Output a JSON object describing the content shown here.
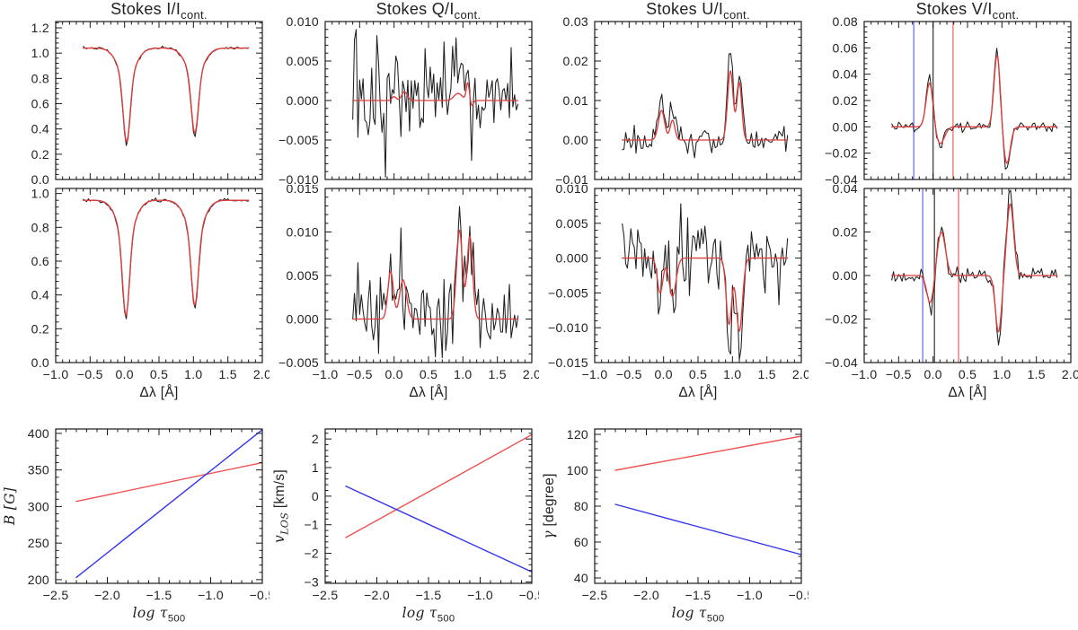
{
  "palette": {
    "axis": "#1a1a1a",
    "black_curve": "#1f1f1f",
    "fit_red": "#dd3c3c",
    "marker_blue": "#7b7bf0",
    "marker_gray": "#4d4d4d",
    "marker_red": "#f07575",
    "line_red": "#f05252",
    "line_blue": "#3535ee"
  },
  "chart_data": [
    {
      "id": "stokes-i-pixel1",
      "type": "line",
      "row": 0,
      "col": 0,
      "title": [
        {
          "t": "Stokes I/I"
        },
        {
          "t": "cont.",
          "sub": true
        }
      ],
      "xlim": [
        -1,
        2
      ],
      "ylim": [
        0,
        1.25
      ],
      "xticks": [
        -1.0,
        -0.5,
        0.0,
        0.5,
        1.0,
        1.5,
        2.0
      ],
      "xtick_labels": null,
      "yticks": [
        0.0,
        0.2,
        0.4,
        0.6,
        0.8,
        1.0,
        1.2
      ],
      "ytick_labels": [
        "0.0",
        "0.2",
        "0.4",
        "0.6",
        "0.8",
        "1.0",
        "1.2"
      ],
      "xlabel": null,
      "ylabel": null,
      "continuum": 1.04,
      "components": [
        {
          "c": 0.03,
          "a": -0.52,
          "s": 0.05
        },
        {
          "c": 0.03,
          "a": -0.22,
          "s": 0.13
        },
        {
          "c": 1.02,
          "a": -0.47,
          "s": 0.05
        },
        {
          "c": 1.02,
          "a": -0.2,
          "s": 0.13
        }
      ],
      "noise": 0.005,
      "obs_gain": 1.04,
      "seed": 7,
      "x_data": {
        "start": -0.6,
        "end": 1.8,
        "n": 97
      },
      "markers": []
    },
    {
      "id": "stokes-q-pixel1",
      "type": "line",
      "row": 0,
      "col": 1,
      "title": [
        {
          "t": "Stokes Q/I"
        },
        {
          "t": "cont.",
          "sub": true
        }
      ],
      "xlim": [
        -1,
        2
      ],
      "ylim": [
        -0.01,
        0.01
      ],
      "xticks": [
        -1.0,
        -0.5,
        0.0,
        0.5,
        1.0,
        1.5,
        2.0
      ],
      "xtick_labels": null,
      "yticks": [
        -0.01,
        -0.005,
        0.0,
        0.005,
        0.01
      ],
      "ytick_labels": [
        "−0.010",
        "−0.005",
        "0.000",
        "0.005",
        "0.010"
      ],
      "xlabel": null,
      "ylabel": null,
      "continuum": 0,
      "components": [
        {
          "c": 0.0,
          "a": 0.0005,
          "s": 0.03
        },
        {
          "c": 0.15,
          "a": 0.0011,
          "s": 0.04
        },
        {
          "c": 0.93,
          "a": 0.0009,
          "s": 0.06
        },
        {
          "c": 1.07,
          "a": 0.0022,
          "s": 0.022
        },
        {
          "c": 1.13,
          "a": -0.0007,
          "s": 0.02
        }
      ],
      "noise": 0.0035,
      "obs_gain": 1.0,
      "seed": 13,
      "x_data": {
        "start": -0.6,
        "end": 1.8,
        "n": 97
      },
      "markers": []
    },
    {
      "id": "stokes-u-pixel1",
      "type": "line",
      "row": 0,
      "col": 2,
      "title": [
        {
          "t": "Stokes U/I"
        },
        {
          "t": "cont.",
          "sub": true
        }
      ],
      "xlim": [
        -1,
        2
      ],
      "ylim": [
        -0.01,
        0.03
      ],
      "xticks": [
        -1.0,
        -0.5,
        0.0,
        0.5,
        1.0,
        1.5,
        2.0
      ],
      "xtick_labels": null,
      "yticks": [
        -0.01,
        0.0,
        0.01,
        0.02,
        0.03
      ],
      "ytick_labels": [
        "−0.01",
        "0.00",
        "0.01",
        "0.02",
        "0.03"
      ],
      "xlabel": null,
      "ylabel": null,
      "continuum": 0,
      "components": [
        {
          "c": -0.03,
          "a": 0.0075,
          "s": 0.045
        },
        {
          "c": 0.13,
          "a": 0.005,
          "s": 0.035
        },
        {
          "c": 0.97,
          "a": 0.0175,
          "s": 0.04
        },
        {
          "c": 1.1,
          "a": 0.0145,
          "s": 0.035
        }
      ],
      "noise": 0.002,
      "obs_gain": 1.25,
      "seed": 21,
      "x_data": {
        "start": -0.6,
        "end": 1.8,
        "n": 97
      },
      "markers": []
    },
    {
      "id": "stokes-v-pixel1",
      "type": "line",
      "row": 0,
      "col": 3,
      "title": [
        {
          "t": "Stokes V/I"
        },
        {
          "t": "cont.",
          "sub": true
        }
      ],
      "xlim": [
        -1,
        2
      ],
      "ylim": [
        -0.04,
        0.08
      ],
      "xticks": [
        -1.0,
        -0.5,
        0.0,
        0.5,
        1.0,
        1.5,
        2.0
      ],
      "xtick_labels": null,
      "yticks": [
        -0.04,
        -0.02,
        0.0,
        0.02,
        0.04,
        0.06,
        0.08
      ],
      "ytick_labels": [
        "−0.04",
        "−0.02",
        "0.00",
        "0.02",
        "0.04",
        "0.06",
        "0.08"
      ],
      "xlabel": null,
      "ylabel": null,
      "continuum": 0,
      "components": [
        {
          "c": -0.05,
          "a": 0.034,
          "s": 0.05
        },
        {
          "c": 0.1,
          "a": -0.013,
          "s": 0.065
        },
        {
          "c": 0.93,
          "a": 0.055,
          "s": 0.045
        },
        {
          "c": 1.07,
          "a": -0.028,
          "s": 0.05
        }
      ],
      "noise": 0.0022,
      "obs_gain": 1.1,
      "seed": 29,
      "x_data": {
        "start": -0.6,
        "end": 1.8,
        "n": 97
      },
      "markers": [
        {
          "x": -0.28,
          "color": "marker_blue"
        },
        {
          "x": 0.0,
          "color": "marker_gray"
        },
        {
          "x": 0.29,
          "color": "marker_red"
        }
      ]
    },
    {
      "id": "stokes-i-pixel2",
      "type": "line",
      "row": 1,
      "col": 0,
      "title": null,
      "xlim": [
        -1,
        2
      ],
      "ylim": [
        0,
        1.03
      ],
      "xticks": [
        -1.0,
        -0.5,
        0.0,
        0.5,
        1.0,
        1.5,
        2.0
      ],
      "xtick_labels": [
        "−1.0",
        "−0.5",
        "0.0",
        "0.5",
        "1.0",
        "1.5",
        "2.0"
      ],
      "yticks": [
        0.0,
        0.2,
        0.4,
        0.6,
        0.8,
        1.0
      ],
      "ytick_labels": [
        "0.0",
        "0.2",
        "0.4",
        "0.6",
        "0.8",
        "1.0"
      ],
      "xlabel": [
        {
          "t": "Δλ [Å]"
        }
      ],
      "ylabel": null,
      "continuum": 0.96,
      "components": [
        {
          "c": 0.02,
          "a": -0.48,
          "s": 0.05
        },
        {
          "c": 0.02,
          "a": -0.2,
          "s": 0.13
        },
        {
          "c": 1.02,
          "a": -0.43,
          "s": 0.05
        },
        {
          "c": 1.02,
          "a": -0.19,
          "s": 0.13
        }
      ],
      "noise": 0.005,
      "obs_gain": 1.03,
      "seed": 37,
      "x_data": {
        "start": -0.6,
        "end": 1.8,
        "n": 97
      },
      "markers": []
    },
    {
      "id": "stokes-q-pixel2",
      "type": "line",
      "row": 1,
      "col": 1,
      "title": null,
      "xlim": [
        -1,
        2
      ],
      "ylim": [
        -0.005,
        0.015
      ],
      "xticks": [
        -1.0,
        -0.5,
        0.0,
        0.5,
        1.0,
        1.5,
        2.0
      ],
      "xtick_labels": [
        "−1.0",
        "−0.5",
        "0.0",
        "0.5",
        "1.0",
        "1.5",
        "2.0"
      ],
      "yticks": [
        -0.005,
        0.0,
        0.005,
        0.01,
        0.015
      ],
      "ytick_labels": [
        "−0.005",
        "0.000",
        "0.005",
        "0.010",
        "0.015"
      ],
      "xlabel": [
        {
          "t": "Δλ [Å]"
        }
      ],
      "ylabel": null,
      "continuum": 0,
      "components": [
        {
          "c": -0.05,
          "a": 0.0055,
          "s": 0.04
        },
        {
          "c": 0.13,
          "a": 0.0045,
          "s": 0.05
        },
        {
          "c": 0.95,
          "a": 0.0102,
          "s": 0.042
        },
        {
          "c": 1.1,
          "a": 0.0095,
          "s": 0.04
        }
      ],
      "noise": 0.0028,
      "obs_gain": 1.12,
      "seed": 43,
      "x_data": {
        "start": -0.6,
        "end": 1.8,
        "n": 97
      },
      "markers": []
    },
    {
      "id": "stokes-u-pixel2",
      "type": "line",
      "row": 1,
      "col": 2,
      "title": null,
      "xlim": [
        -1,
        2
      ],
      "ylim": [
        -0.015,
        0.01
      ],
      "xticks": [
        -1.0,
        -0.5,
        0.0,
        0.5,
        1.0,
        1.5,
        2.0
      ],
      "xtick_labels": [
        "−1.0",
        "−0.5",
        "0.0",
        "0.5",
        "1.0",
        "1.5",
        "2.0"
      ],
      "yticks": [
        -0.015,
        -0.01,
        -0.005,
        0.0,
        0.005,
        0.01
      ],
      "ytick_labels": [
        "−0.015",
        "−0.010",
        "−0.005",
        "0.000",
        "0.005",
        "0.010"
      ],
      "xlabel": [
        {
          "t": "Δλ [Å]"
        }
      ],
      "ylabel": null,
      "continuum": 0,
      "components": [
        {
          "c": -0.05,
          "a": -0.005,
          "s": 0.04
        },
        {
          "c": 0.13,
          "a": -0.0055,
          "s": 0.05
        },
        {
          "c": 0.95,
          "a": -0.0095,
          "s": 0.04
        },
        {
          "c": 1.1,
          "a": -0.0105,
          "s": 0.045
        }
      ],
      "noise": 0.0028,
      "obs_gain": 1.1,
      "seed": 51,
      "x_data": {
        "start": -0.6,
        "end": 1.8,
        "n": 97
      },
      "markers": []
    },
    {
      "id": "stokes-v-pixel2",
      "type": "line",
      "row": 1,
      "col": 3,
      "title": null,
      "xlim": [
        -1,
        2
      ],
      "ylim": [
        -0.04,
        0.04
      ],
      "xticks": [
        -1.0,
        -0.5,
        0.0,
        0.5,
        1.0,
        1.5,
        2.0
      ],
      "xtick_labels": [
        "−1.0",
        "−0.5",
        "0.0",
        "0.5",
        "1.0",
        "1.5",
        "2.0"
      ],
      "yticks": [
        -0.04,
        -0.02,
        0.0,
        0.02,
        0.04
      ],
      "ytick_labels": [
        "−0.04",
        "−0.02",
        "0.00",
        "0.02",
        "0.04"
      ],
      "xlabel": [
        {
          "t": "Δλ [Å]"
        }
      ],
      "ylabel": null,
      "continuum": 0,
      "components": [
        {
          "c": -0.04,
          "a": -0.013,
          "s": 0.05
        },
        {
          "c": 0.12,
          "a": 0.02,
          "s": 0.06
        },
        {
          "c": 0.95,
          "a": -0.026,
          "s": 0.045
        },
        {
          "c": 1.12,
          "a": 0.033,
          "s": 0.05
        }
      ],
      "noise": 0.002,
      "obs_gain": 1.15,
      "seed": 59,
      "x_data": {
        "start": -0.6,
        "end": 1.8,
        "n": 97
      },
      "markers": [
        {
          "x": -0.15,
          "color": "marker_blue"
        },
        {
          "x": 0.02,
          "color": "marker_gray"
        },
        {
          "x": 0.37,
          "color": "marker_red"
        }
      ]
    },
    {
      "id": "b-stratification",
      "type": "line",
      "row": 2,
      "col": 0,
      "title": null,
      "xlim": [
        -2.5,
        -0.5
      ],
      "ylim": [
        195,
        406
      ],
      "xticks": [
        -2.5,
        -2.0,
        -1.5,
        -1.0,
        -0.5
      ],
      "xtick_labels": [
        "−2.5",
        "−2.0",
        "−1.5",
        "−1.0",
        "−0.5"
      ],
      "yticks": [
        200,
        250,
        300,
        350,
        400
      ],
      "ytick_labels": [
        "200",
        "250",
        "300",
        "350",
        "400"
      ],
      "xlabel": [
        {
          "t": "log τ",
          "i": true
        },
        {
          "t": "500",
          "sub": true
        }
      ],
      "ylabel": [
        {
          "t": "B [G]",
          "i": true
        }
      ],
      "series": [
        {
          "name": "red-line",
          "color": "line_red",
          "points": [
            [
              -2.3,
              307
            ],
            [
              -0.5,
              360
            ]
          ]
        },
        {
          "name": "blue-line",
          "color": "line_blue",
          "points": [
            [
              -2.3,
              203
            ],
            [
              -0.5,
              405
            ]
          ]
        }
      ]
    },
    {
      "id": "vlos-stratification",
      "type": "line",
      "row": 2,
      "col": 1,
      "title": null,
      "xlim": [
        -2.5,
        -0.5
      ],
      "ylim": [
        -3.05,
        2.35
      ],
      "xticks": [
        -2.5,
        -2.0,
        -1.5,
        -1.0,
        -0.5
      ],
      "xtick_labels": [
        "−2.5",
        "−2.0",
        "−1.5",
        "−1.0",
        "−0.5"
      ],
      "yticks": [
        -3,
        -2,
        -1,
        0,
        1,
        2
      ],
      "ytick_labels": [
        "−3",
        "−2",
        "−1",
        "0",
        "1",
        "2"
      ],
      "xlabel": [
        {
          "t": "log τ",
          "i": true
        },
        {
          "t": "500",
          "sub": true
        }
      ],
      "ylabel": [
        {
          "t": "v",
          "i": true
        },
        {
          "t": "LOS",
          "sub": true,
          "i": true
        },
        {
          "t": " [km/s]"
        }
      ],
      "series": [
        {
          "name": "red-line",
          "color": "line_red",
          "points": [
            [
              -2.3,
              -1.45
            ],
            [
              -0.5,
              2.15
            ]
          ]
        },
        {
          "name": "blue-line",
          "color": "line_blue",
          "points": [
            [
              -2.3,
              0.35
            ],
            [
              -0.5,
              -2.65
            ]
          ]
        }
      ]
    },
    {
      "id": "gamma-stratification",
      "type": "line",
      "row": 2,
      "col": 2,
      "title": null,
      "xlim": [
        -2.5,
        -0.5
      ],
      "ylim": [
        37,
        123
      ],
      "xticks": [
        -2.5,
        -2.0,
        -1.5,
        -1.0,
        -0.5
      ],
      "xtick_labels": [
        "−2.5",
        "−2.0",
        "−1.5",
        "−1.0",
        "−0.5"
      ],
      "yticks": [
        40,
        60,
        80,
        100,
        120
      ],
      "ytick_labels": [
        "40",
        "60",
        "80",
        "100",
        "120"
      ],
      "xlabel": [
        {
          "t": "log τ",
          "i": true
        },
        {
          "t": "500",
          "sub": true
        }
      ],
      "ylabel": [
        {
          "t": "γ",
          "i": true
        },
        {
          "t": " [degree]"
        }
      ],
      "series": [
        {
          "name": "red-line",
          "color": "line_red",
          "points": [
            [
              -2.3,
              100
            ],
            [
              -0.5,
              119
            ]
          ]
        },
        {
          "name": "blue-line",
          "color": "line_blue",
          "points": [
            [
              -2.3,
              81
            ],
            [
              -0.5,
              53
            ]
          ]
        }
      ]
    }
  ]
}
